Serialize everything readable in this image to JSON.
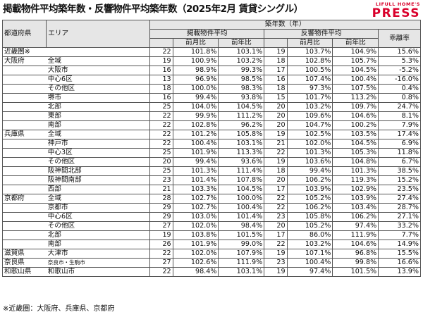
{
  "title": "掲載物件平均築年数・反響物件平均築年数（2025年2月 賃貸シングル）",
  "logo": {
    "top": "LIFULL HOME'S",
    "main": "PRESS"
  },
  "header": {
    "region": "都道府県",
    "area": "エリア",
    "age": "築年数（年）",
    "listed": "掲載物件平均",
    "response": "反響物件平均",
    "gap": "乖離率",
    "mom": "前月比",
    "yoy": "前年比"
  },
  "rows": [
    {
      "pref": "近畿圏※",
      "area": "",
      "level": 0,
      "la": "22",
      "lm": "101.8%",
      "ly": "103.1%",
      "ra": "19",
      "rm": "103.7%",
      "ry": "104.9%",
      "gap": "15.6%"
    },
    {
      "pref": "大阪府",
      "area": "全域",
      "level": 1,
      "la": "19",
      "lm": "100.9%",
      "ly": "103.2%",
      "ra": "18",
      "rm": "102.8%",
      "ry": "105.7%",
      "gap": "5.3%"
    },
    {
      "pref": "",
      "area": "大阪市",
      "level": 2,
      "la": "16",
      "lm": "98.9%",
      "ly": "99.3%",
      "ra": "17",
      "rm": "100.5%",
      "ry": "104.5%",
      "gap": "-5.2%"
    },
    {
      "pref": "",
      "area": "中心6区",
      "level": 3,
      "la": "13",
      "lm": "96.9%",
      "ly": "98.5%",
      "ra": "16",
      "rm": "107.4%",
      "ry": "100.4%",
      "gap": "-16.0%"
    },
    {
      "pref": "",
      "area": "その他区",
      "level": 3,
      "la": "18",
      "lm": "100.0%",
      "ly": "98.3%",
      "ra": "18",
      "rm": "97.3%",
      "ry": "107.5%",
      "gap": "0.4%"
    },
    {
      "pref": "",
      "area": "堺市",
      "level": 2,
      "la": "16",
      "lm": "99.4%",
      "ly": "93.8%",
      "ra": "15",
      "rm": "101.7%",
      "ry": "113.2%",
      "gap": "0.8%"
    },
    {
      "pref": "",
      "area": "北部",
      "level": 2,
      "la": "25",
      "lm": "104.0%",
      "ly": "104.5%",
      "ra": "20",
      "rm": "103.2%",
      "ry": "109.7%",
      "gap": "24.7%"
    },
    {
      "pref": "",
      "area": "東部",
      "level": 2,
      "la": "22",
      "lm": "99.9%",
      "ly": "111.2%",
      "ra": "20",
      "rm": "109.6%",
      "ry": "104.6%",
      "gap": "8.1%"
    },
    {
      "pref": "",
      "area": "南部",
      "level": 2,
      "la": "22",
      "lm": "102.8%",
      "ly": "96.2%",
      "ra": "20",
      "rm": "104.7%",
      "ry": "100.2%",
      "gap": "7.9%"
    },
    {
      "pref": "兵庫県",
      "area": "全域",
      "level": 1,
      "la": "22",
      "lm": "101.2%",
      "ly": "105.8%",
      "ra": "19",
      "rm": "102.5%",
      "ry": "103.5%",
      "gap": "17.4%"
    },
    {
      "pref": "",
      "area": "神戸市",
      "level": 2,
      "la": "22",
      "lm": "100.4%",
      "ly": "103.1%",
      "ra": "21",
      "rm": "102.0%",
      "ry": "104.5%",
      "gap": "6.9%"
    },
    {
      "pref": "",
      "area": "中心3区",
      "level": 3,
      "la": "25",
      "lm": "101.9%",
      "ly": "113.3%",
      "ra": "22",
      "rm": "101.3%",
      "ry": "105.3%",
      "gap": "11.8%"
    },
    {
      "pref": "",
      "area": "その他区",
      "level": 3,
      "la": "20",
      "lm": "99.4%",
      "ly": "93.6%",
      "ra": "19",
      "rm": "103.6%",
      "ry": "104.8%",
      "gap": "6.7%"
    },
    {
      "pref": "",
      "area": "阪神間北部",
      "level": 2,
      "la": "25",
      "lm": "101.3%",
      "ly": "111.4%",
      "ra": "18",
      "rm": "99.4%",
      "ry": "101.3%",
      "gap": "38.5%"
    },
    {
      "pref": "",
      "area": "阪神間南部",
      "level": 2,
      "la": "23",
      "lm": "101.4%",
      "ly": "107.8%",
      "ra": "20",
      "rm": "106.2%",
      "ry": "119.3%",
      "gap": "15.2%"
    },
    {
      "pref": "",
      "area": "西部",
      "level": 2,
      "la": "21",
      "lm": "103.3%",
      "ly": "104.5%",
      "ra": "17",
      "rm": "103.9%",
      "ry": "102.9%",
      "gap": "23.5%"
    },
    {
      "pref": "京都府",
      "area": "全域",
      "level": 1,
      "la": "28",
      "lm": "102.7%",
      "ly": "100.0%",
      "ra": "22",
      "rm": "105.2%",
      "ry": "103.9%",
      "gap": "27.4%"
    },
    {
      "pref": "",
      "area": "京都市",
      "level": 2,
      "la": "29",
      "lm": "102.7%",
      "ly": "100.4%",
      "ra": "22",
      "rm": "106.2%",
      "ry": "103.4%",
      "gap": "28.7%"
    },
    {
      "pref": "",
      "area": "中心6区",
      "level": 3,
      "la": "29",
      "lm": "103.0%",
      "ly": "101.4%",
      "ra": "23",
      "rm": "105.8%",
      "ry": "106.2%",
      "gap": "27.1%"
    },
    {
      "pref": "",
      "area": "その他区",
      "level": 3,
      "la": "27",
      "lm": "102.0%",
      "ly": "98.4%",
      "ra": "20",
      "rm": "105.2%",
      "ry": "97.4%",
      "gap": "33.2%"
    },
    {
      "pref": "",
      "area": "北部",
      "level": 2,
      "la": "19",
      "lm": "103.8%",
      "ly": "101.5%",
      "ra": "17",
      "rm": "86.0%",
      "ry": "111.9%",
      "gap": "7.7%"
    },
    {
      "pref": "",
      "area": "南部",
      "level": 2,
      "la": "26",
      "lm": "101.9%",
      "ly": "99.0%",
      "ra": "22",
      "rm": "103.2%",
      "ry": "104.6%",
      "gap": "14.9%"
    },
    {
      "pref": "滋賀県",
      "area": "大津市",
      "level": 1,
      "la": "22",
      "lm": "102.0%",
      "ly": "107.9%",
      "ra": "19",
      "rm": "107.1%",
      "ry": "96.8%",
      "gap": "15.5%"
    },
    {
      "pref": "奈良県",
      "area": "奈良市・生駒市",
      "level": 1,
      "small": true,
      "la": "27",
      "lm": "102.6%",
      "ly": "111.9%",
      "ra": "23",
      "rm": "100.4%",
      "ry": "99.8%",
      "gap": "16.6%"
    },
    {
      "pref": "和歌山県",
      "area": "和歌山市",
      "level": 1,
      "la": "22",
      "lm": "98.4%",
      "ly": "103.1%",
      "ra": "19",
      "rm": "97.4%",
      "ry": "101.5%",
      "gap": "13.9%"
    }
  ],
  "footnote": "※近畿圏：大阪府、兵庫県、京都府"
}
